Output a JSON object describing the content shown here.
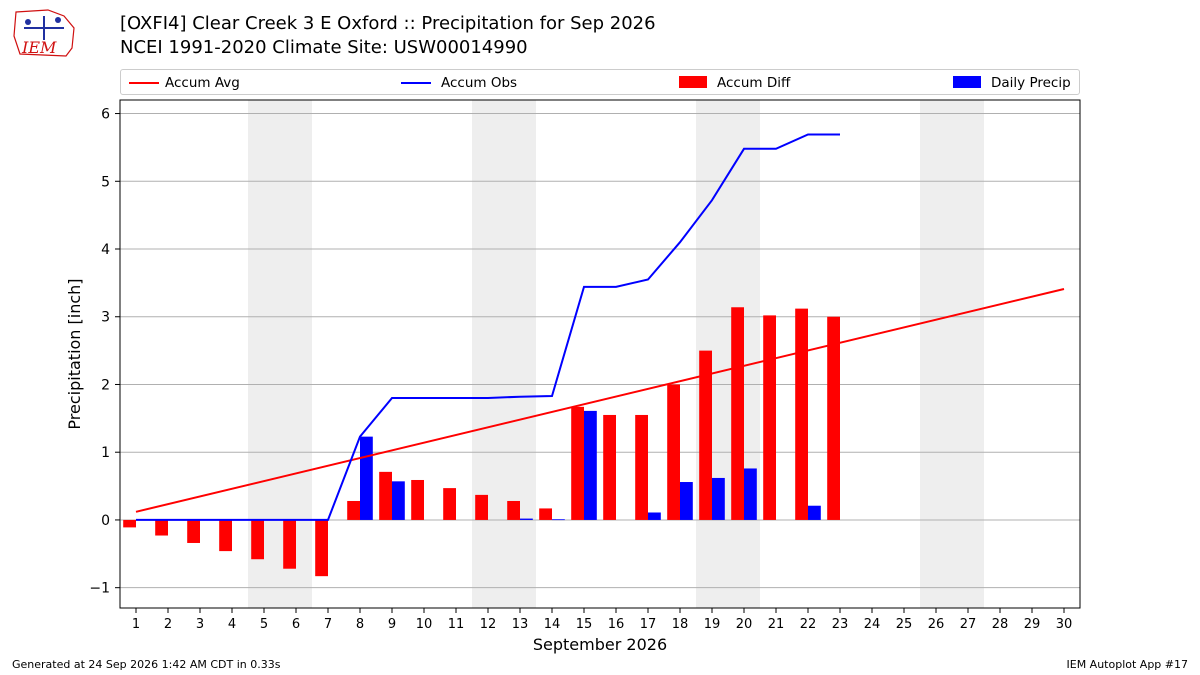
{
  "logo": {
    "text": "IEM"
  },
  "title_line1": "[OXFI4] Clear Creek 3 E Oxford :: Precipitation for Sep 2026",
  "title_line2": "NCEI 1991-2020 Climate Site: USW00014990",
  "footer_left": "Generated at 24 Sep 2026 1:42 AM CDT in 0.33s",
  "footer_right": "IEM Autoplot App #17",
  "colors": {
    "avg": "#ff0000",
    "obs": "#0000ff",
    "diff": "#ff0000",
    "daily": "#0000ff",
    "weekend": "#eeeeee",
    "grid": "#b0b0b0"
  },
  "chart_data": {
    "type": "bar",
    "xlabel": "September 2026",
    "ylabel": "Precipitation [inch]",
    "ylim": [
      -1.3,
      6.2
    ],
    "yticks": [
      -1,
      0,
      1,
      2,
      3,
      4,
      5,
      6
    ],
    "ytick_labels": [
      "−1",
      "0",
      "1",
      "2",
      "3",
      "4",
      "5",
      "6"
    ],
    "xlim": [
      0.5,
      30.5
    ],
    "days": [
      1,
      2,
      3,
      4,
      5,
      6,
      7,
      8,
      9,
      10,
      11,
      12,
      13,
      14,
      15,
      16,
      17,
      18,
      19,
      20,
      21,
      22,
      23,
      24,
      25,
      26,
      27,
      28,
      29,
      30
    ],
    "weekend_days": [
      5,
      6,
      12,
      13,
      19,
      20,
      26,
      27
    ],
    "grid": "y",
    "legend_placement": "top",
    "series": [
      {
        "name": "Accum Avg",
        "kind": "line",
        "x": [
          1,
          30
        ],
        "values": [
          0.12,
          3.41
        ]
      },
      {
        "name": "Accum Obs",
        "kind": "line",
        "x": [
          1,
          2,
          3,
          4,
          5,
          6,
          7,
          8,
          9,
          10,
          11,
          12,
          13,
          14,
          15,
          16,
          17,
          18,
          19,
          20,
          21,
          22,
          23
        ],
        "values": [
          0,
          0,
          0,
          0,
          0,
          0,
          0,
          1.23,
          1.8,
          1.8,
          1.8,
          1.8,
          1.82,
          1.83,
          3.44,
          3.44,
          3.55,
          4.1,
          4.72,
          5.48,
          5.48,
          5.69,
          5.69
        ]
      },
      {
        "name": "Accum Diff",
        "kind": "bar",
        "x": [
          1,
          2,
          3,
          4,
          5,
          6,
          7,
          8,
          9,
          10,
          11,
          12,
          13,
          14,
          15,
          16,
          17,
          18,
          19,
          20,
          21,
          22,
          23
        ],
        "values": [
          -0.11,
          -0.23,
          -0.34,
          -0.46,
          -0.58,
          -0.72,
          -0.83,
          0.28,
          0.71,
          0.59,
          0.47,
          0.37,
          0.28,
          0.17,
          1.67,
          1.55,
          1.55,
          2.0,
          2.5,
          3.14,
          3.02,
          3.12,
          3.0
        ]
      },
      {
        "name": "Daily Precip",
        "kind": "bar",
        "x": [
          1,
          2,
          3,
          4,
          5,
          6,
          7,
          8,
          9,
          10,
          11,
          12,
          13,
          14,
          15,
          16,
          17,
          18,
          19,
          20,
          21,
          22,
          23
        ],
        "values": [
          0,
          0,
          0,
          0,
          0,
          0,
          0,
          1.23,
          0.57,
          0,
          0,
          0,
          0.02,
          0.01,
          1.61,
          0,
          0.11,
          0.56,
          0.62,
          0.76,
          0,
          0.21,
          0
        ]
      }
    ]
  }
}
